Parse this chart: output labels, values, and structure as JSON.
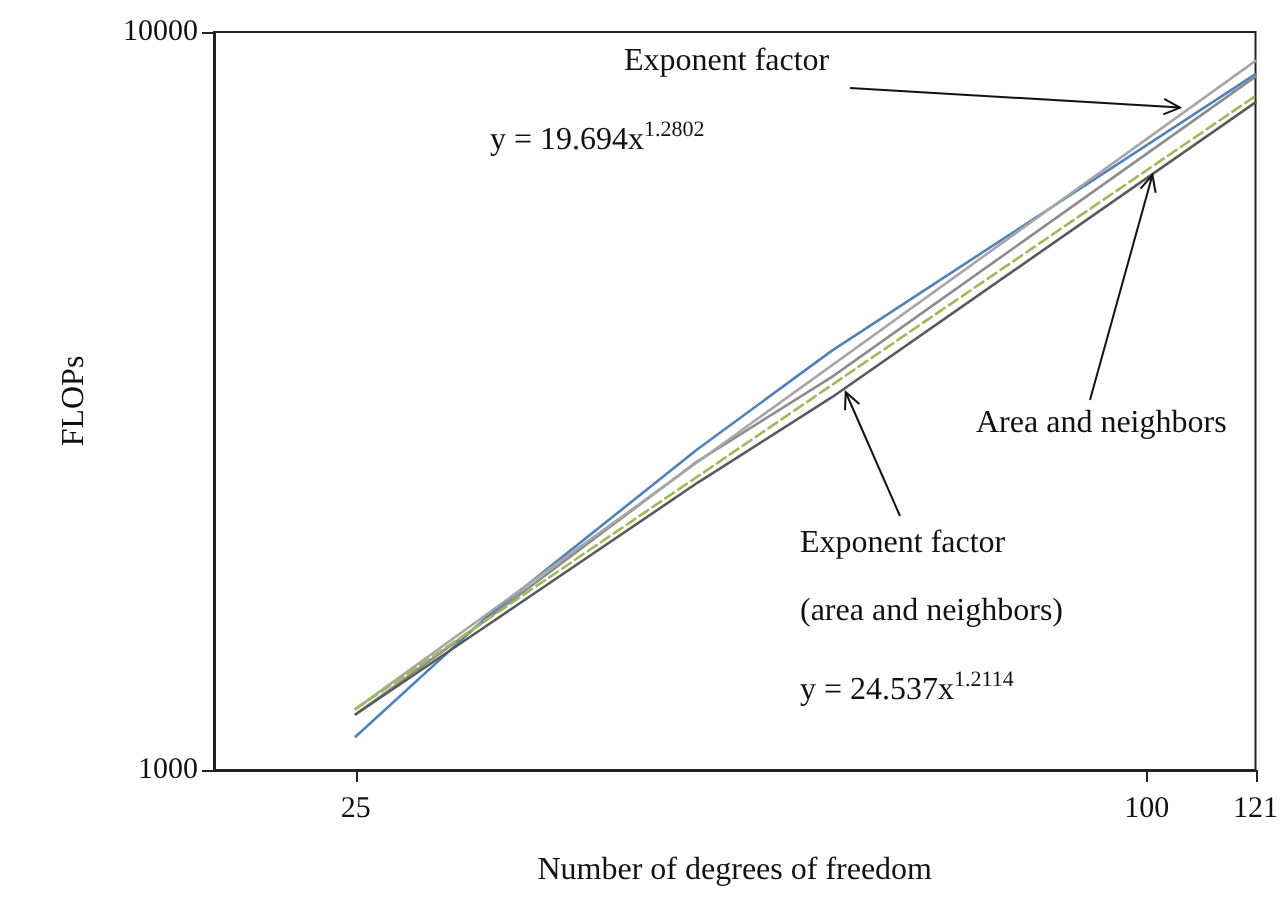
{
  "chart_data": {
    "type": "line",
    "xlabel": "Number of degrees of freedom",
    "ylabel": "FLOPs",
    "log": "xy",
    "xlim": [
      19.5,
      121
    ],
    "xticks": [
      25,
      100,
      121
    ],
    "ylim": [
      1000,
      10000
    ],
    "yticks": [
      1000,
      10000
    ],
    "grid": false,
    "marker": "none",
    "series": [
      {
        "color": "#4f81bd",
        "x": [
          25,
          31.3,
          45.5,
          57.6,
          121
        ],
        "values": [
          1110,
          1600,
          2720,
          3700,
          8770
        ],
        "line_style": "solid"
      },
      {
        "color": "#8c8c8c",
        "x": [
          25,
          31.3,
          45.5,
          57.6,
          121
        ],
        "values": [
          1190,
          1590,
          2620,
          3410,
          8700
        ],
        "line_style": "solid"
      },
      {
        "color": "#a6a6a6",
        "x": [
          25,
          50,
          121
        ],
        "values": [
          1210,
          2950,
          9140
        ],
        "line_style": "solid"
      },
      {
        "color": "#595959",
        "x": [
          25,
          31.3,
          45.5,
          57.6,
          121
        ],
        "values": [
          1190,
          1560,
          2450,
          3200,
          8030
        ],
        "line_style": "solid"
      },
      {
        "color": "#9bbb59",
        "x": [
          25,
          50,
          121
        ],
        "values": [
          1210,
          2800,
          8190
        ],
        "line_style": "dashed"
      }
    ],
    "annotations": [
      {
        "text": "Exponent factor",
        "x": 106,
        "y": 7900
      },
      "y = 19.694x$^{1.2802}$",
      {
        "text": "Area and neighbors",
        "x": 101,
        "y": 6400
      },
      {
        "text": "Exponent factor\n(area and neighbors)",
        "x": 59,
        "y": 3250
      },
      "y = 24.537x$^{1.2114}$"
    ]
  }
}
